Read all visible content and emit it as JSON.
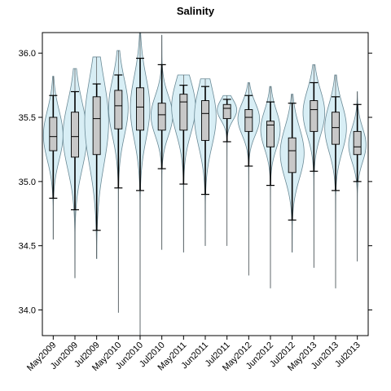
{
  "chart_data": {
    "type": "box-violin",
    "title": "Salinity",
    "xlabel": "",
    "ylabel": "",
    "ylim": [
      33.8,
      36.16
    ],
    "yticks": [
      34.0,
      34.5,
      35.0,
      35.5,
      36.0
    ],
    "ytick_labels": [
      "34.0",
      "34.5",
      "35.0",
      "35.5",
      "36.0"
    ],
    "grid": false,
    "colors": {
      "violin_fill": "#d8eef5",
      "violin_stroke": "#6a8a96",
      "box_fill": "#c8c8c8",
      "line": "#000000"
    },
    "categories": [
      "May2009",
      "Jun2009",
      "Jul2009",
      "May2010",
      "Jun2010",
      "Jul2010",
      "May2011",
      "Jun2011",
      "Jul2011",
      "May2012",
      "Jun2012",
      "Jul2012",
      "May2013",
      "Jun2013",
      "Jul2013"
    ],
    "boxes": [
      {
        "min": 34.55,
        "whisker_low": 34.87,
        "q1": 35.24,
        "median": 35.35,
        "q3": 35.5,
        "whisker_high": 35.67,
        "max": 35.82,
        "violin_width": 0.45
      },
      {
        "min": 34.25,
        "whisker_low": 34.78,
        "q1": 35.19,
        "median": 35.35,
        "q3": 35.54,
        "whisker_high": 35.7,
        "max": 35.88,
        "violin_width": 0.55
      },
      {
        "min": 34.4,
        "whisker_low": 34.62,
        "q1": 35.21,
        "median": 35.49,
        "q3": 35.66,
        "whisker_high": 35.76,
        "max": 35.97,
        "violin_width": 0.55
      },
      {
        "min": 33.98,
        "whisker_low": 34.95,
        "q1": 35.41,
        "median": 35.59,
        "q3": 35.71,
        "whisker_high": 35.83,
        "max": 36.02,
        "violin_width": 0.45
      },
      {
        "min": 33.8,
        "whisker_low": 34.93,
        "q1": 35.4,
        "median": 35.58,
        "q3": 35.73,
        "whisker_high": 35.96,
        "max": 36.16,
        "violin_width": 0.45
      },
      {
        "min": 34.47,
        "whisker_low": 35.1,
        "q1": 35.4,
        "median": 35.52,
        "q3": 35.61,
        "whisker_high": 35.91,
        "max": 36.14,
        "violin_width": 0.5
      },
      {
        "min": 34.45,
        "whisker_low": 34.98,
        "q1": 35.4,
        "median": 35.62,
        "q3": 35.68,
        "whisker_high": 35.75,
        "max": 35.83,
        "violin_width": 0.55
      },
      {
        "min": 34.5,
        "whisker_low": 34.9,
        "q1": 35.32,
        "median": 35.53,
        "q3": 35.63,
        "whisker_high": 35.74,
        "max": 35.8,
        "violin_width": 0.5
      },
      {
        "min": 34.5,
        "whisker_low": 35.31,
        "q1": 35.49,
        "median": 35.57,
        "q3": 35.6,
        "whisker_high": 35.64,
        "max": 35.67,
        "violin_width": 0.45
      },
      {
        "min": 34.27,
        "whisker_low": 35.12,
        "q1": 35.39,
        "median": 35.5,
        "q3": 35.56,
        "whisker_high": 35.67,
        "max": 35.77,
        "violin_width": 0.5
      },
      {
        "min": 34.17,
        "whisker_low": 34.97,
        "q1": 35.27,
        "median": 35.44,
        "q3": 35.47,
        "whisker_high": 35.62,
        "max": 35.74,
        "violin_width": 0.45
      },
      {
        "min": 34.45,
        "whisker_low": 34.7,
        "q1": 35.07,
        "median": 35.24,
        "q3": 35.34,
        "whisker_high": 35.61,
        "max": 35.68,
        "violin_width": 0.55
      },
      {
        "min": 34.33,
        "whisker_low": 35.08,
        "q1": 35.39,
        "median": 35.56,
        "q3": 35.63,
        "whisker_high": 35.77,
        "max": 35.91,
        "violin_width": 0.5
      },
      {
        "min": 34.17,
        "whisker_low": 34.93,
        "q1": 35.29,
        "median": 35.42,
        "q3": 35.54,
        "whisker_high": 35.66,
        "max": 35.83,
        "violin_width": 0.5
      },
      {
        "min": 34.38,
        "whisker_low": 35.0,
        "q1": 35.21,
        "median": 35.27,
        "q3": 35.39,
        "whisker_high": 35.6,
        "max": 35.7,
        "violin_width": 0.4
      }
    ]
  }
}
